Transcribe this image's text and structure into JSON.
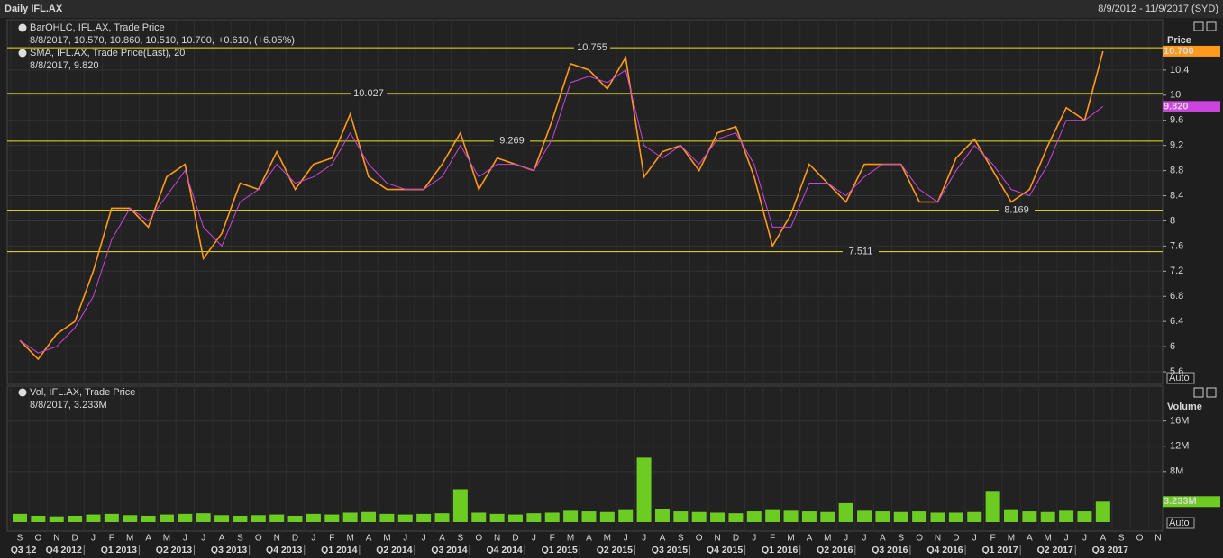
{
  "header": {
    "title": "Daily IFL.AX",
    "range": "8/9/2012 - 11/9/2017 (SYD)"
  },
  "months": [
    "S",
    "O",
    "N",
    "D",
    "J",
    "F",
    "M",
    "A",
    "M",
    "J",
    "J",
    "A",
    "S",
    "O",
    "N",
    "D",
    "J",
    "F",
    "M",
    "A",
    "M",
    "J",
    "J",
    "A",
    "S",
    "O",
    "N",
    "D",
    "J",
    "F",
    "M",
    "A",
    "M",
    "J",
    "J",
    "A",
    "S",
    "O",
    "N",
    "D",
    "J",
    "F",
    "M",
    "A",
    "M",
    "J",
    "J",
    "A",
    "S",
    "O",
    "N",
    "D",
    "J",
    "F",
    "M",
    "A",
    "M",
    "J",
    "J",
    "A",
    "S",
    "O",
    "N"
  ],
  "quarters": [
    "Q3 12",
    "Q4 2012",
    "Q1 2013",
    "Q2 2013",
    "Q3 2013",
    "Q4 2013",
    "Q1 2014",
    "Q2 2014",
    "Q3 2014",
    "Q4 2014",
    "Q1 2015",
    "Q2 2015",
    "Q3 2015",
    "Q4 2015",
    "Q1 2016",
    "Q2 2016",
    "Q3 2016",
    "Q4 2016",
    "Q1 2017",
    "Q2 2017",
    "Q3 2017"
  ],
  "chart_data": [
    {
      "type": "line",
      "ylabel": "Price",
      "scale_mode": "Auto",
      "x": [
        "2012-09",
        "2012-10",
        "2012-11",
        "2012-12",
        "2013-01",
        "2013-02",
        "2013-03",
        "2013-04",
        "2013-05",
        "2013-06",
        "2013-07",
        "2013-08",
        "2013-09",
        "2013-10",
        "2013-11",
        "2013-12",
        "2014-01",
        "2014-02",
        "2014-03",
        "2014-04",
        "2014-05",
        "2014-06",
        "2014-07",
        "2014-08",
        "2014-09",
        "2014-10",
        "2014-11",
        "2014-12",
        "2015-01",
        "2015-02",
        "2015-03",
        "2015-04",
        "2015-05",
        "2015-06",
        "2015-07",
        "2015-08",
        "2015-09",
        "2015-10",
        "2015-11",
        "2015-12",
        "2016-01",
        "2016-02",
        "2016-03",
        "2016-04",
        "2016-05",
        "2016-06",
        "2016-07",
        "2016-08",
        "2016-09",
        "2016-10",
        "2016-11",
        "2016-12",
        "2017-01",
        "2017-02",
        "2017-03",
        "2017-04",
        "2017-05",
        "2017-06",
        "2017-07",
        "2017-08"
      ],
      "series": [
        {
          "name": "BarOHLC, IFL.AX, Trade Price",
          "color": "#ff9a1c",
          "detail": "8/8/2017, 10.570, 10.860, 10.510, 10.700,",
          "change": "+0.610, (+6.05%)",
          "current_label": "10.700",
          "values": [
            6.1,
            5.8,
            6.2,
            6.4,
            7.2,
            8.2,
            8.2,
            7.9,
            8.7,
            8.9,
            7.4,
            7.8,
            8.6,
            8.5,
            9.1,
            8.5,
            8.9,
            9.0,
            9.7,
            8.7,
            8.5,
            8.5,
            8.5,
            8.9,
            9.4,
            8.5,
            9.0,
            8.9,
            8.8,
            9.6,
            10.5,
            10.4,
            10.1,
            10.6,
            8.7,
            9.1,
            9.2,
            8.8,
            9.4,
            9.5,
            8.7,
            7.6,
            8.1,
            8.9,
            8.6,
            8.3,
            8.9,
            8.9,
            8.9,
            8.3,
            8.3,
            9.0,
            9.3,
            8.8,
            8.3,
            8.5,
            9.2,
            9.8,
            9.6,
            10.7
          ]
        },
        {
          "name": "SMA, IFL.AX, Trade Price(Last),  20",
          "color": "#cc44dd",
          "detail": "8/8/2017, 9.820",
          "current_label": "9.820",
          "values": [
            6.1,
            5.9,
            6.0,
            6.3,
            6.8,
            7.7,
            8.2,
            8.0,
            8.4,
            8.8,
            7.9,
            7.6,
            8.3,
            8.5,
            8.9,
            8.6,
            8.7,
            8.9,
            9.4,
            8.9,
            8.6,
            8.5,
            8.5,
            8.7,
            9.2,
            8.7,
            8.9,
            8.9,
            8.8,
            9.3,
            10.2,
            10.3,
            10.2,
            10.4,
            9.2,
            9.0,
            9.2,
            8.9,
            9.3,
            9.4,
            8.9,
            7.9,
            7.9,
            8.6,
            8.6,
            8.4,
            8.7,
            8.9,
            8.9,
            8.5,
            8.3,
            8.8,
            9.2,
            8.9,
            8.5,
            8.4,
            8.9,
            9.6,
            9.6,
            9.82
          ]
        }
      ],
      "levels": [
        10.755,
        10.027,
        9.269,
        8.169,
        7.511
      ],
      "level_color": "#e6e61e",
      "ylim": [
        5.4,
        11.2
      ],
      "yticks": [
        5.6,
        6,
        6.4,
        6.8,
        7.2,
        7.6,
        8,
        8.4,
        8.8,
        9.2,
        9.6,
        10,
        10.4
      ],
      "grid": true
    },
    {
      "type": "bar",
      "ylabel": "Volume",
      "scale_mode": "Auto",
      "x": [
        "2012-09",
        "2012-10",
        "2012-11",
        "2012-12",
        "2013-01",
        "2013-02",
        "2013-03",
        "2013-04",
        "2013-05",
        "2013-06",
        "2013-07",
        "2013-08",
        "2013-09",
        "2013-10",
        "2013-11",
        "2013-12",
        "2014-01",
        "2014-02",
        "2014-03",
        "2014-04",
        "2014-05",
        "2014-06",
        "2014-07",
        "2014-08",
        "2014-09",
        "2014-10",
        "2014-11",
        "2014-12",
        "2015-01",
        "2015-02",
        "2015-03",
        "2015-04",
        "2015-05",
        "2015-06",
        "2015-07",
        "2015-08",
        "2015-09",
        "2015-10",
        "2015-11",
        "2015-12",
        "2016-01",
        "2016-02",
        "2016-03",
        "2016-04",
        "2016-05",
        "2016-06",
        "2016-07",
        "2016-08",
        "2016-09",
        "2016-10",
        "2016-11",
        "2016-12",
        "2017-01",
        "2017-02",
        "2017-03",
        "2017-04",
        "2017-05",
        "2017-06",
        "2017-07",
        "2017-08"
      ],
      "series": [
        {
          "name": "Vol, IFL.AX, Trade Price",
          "color": "#6ccc22",
          "detail": "8/8/2017, 3.233M",
          "current_label": "3.233M",
          "values": [
            1300000,
            1000000,
            900000,
            1000000,
            1200000,
            1300000,
            1100000,
            1000000,
            1200000,
            1300000,
            1400000,
            1100000,
            1000000,
            1100000,
            1200000,
            1000000,
            1300000,
            1200000,
            1500000,
            1600000,
            1300000,
            1200000,
            1300000,
            1400000,
            5200000,
            1500000,
            1300000,
            1200000,
            1400000,
            1500000,
            1800000,
            1700000,
            1600000,
            1900000,
            10200000,
            2000000,
            1700000,
            1600000,
            1500000,
            1400000,
            1700000,
            1900000,
            1800000,
            1700000,
            1600000,
            3000000,
            1800000,
            1700000,
            1600000,
            1700000,
            1500000,
            1500000,
            1600000,
            4800000,
            1900000,
            1700000,
            1600000,
            1800000,
            1700000,
            3233000
          ]
        }
      ],
      "ylim": [
        0,
        21500000
      ],
      "yticks": [
        {
          "value": 8000000,
          "label": "8M"
        },
        {
          "value": 12000000,
          "label": "12M"
        },
        {
          "value": 16000000,
          "label": "16M"
        }
      ],
      "grid": true
    }
  ]
}
